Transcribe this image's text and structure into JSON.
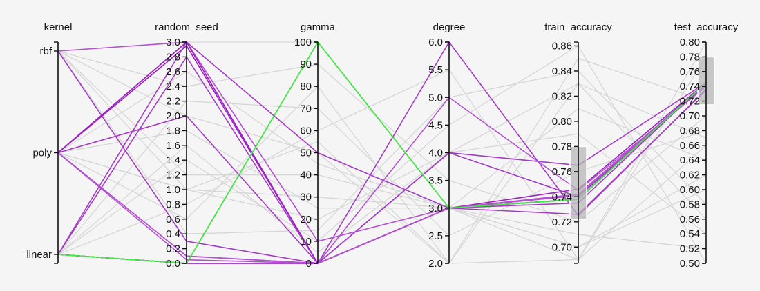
{
  "chart_data": {
    "type": "parallel_coordinates",
    "dimensions": [
      {
        "name": "kernel",
        "type": "categorical",
        "categories": [
          "linear",
          "poly",
          "rbf"
        ]
      },
      {
        "name": "random_seed",
        "type": "numeric",
        "range": [
          0.0,
          3.0
        ],
        "ticks": [
          "0.0",
          "0.2",
          "0.4",
          "0.6",
          "0.8",
          "1.0",
          "1.2",
          "1.4",
          "1.6",
          "1.8",
          "2.0",
          "2.2",
          "2.4",
          "2.6",
          "2.8",
          "3.0"
        ]
      },
      {
        "name": "gamma",
        "type": "numeric",
        "range": [
          0,
          100
        ],
        "ticks": [
          "0",
          "10",
          "20",
          "30",
          "40",
          "50",
          "60",
          "70",
          "80",
          "90",
          "100"
        ]
      },
      {
        "name": "degree",
        "type": "numeric",
        "range": [
          2.0,
          6.0
        ],
        "ticks": [
          "2.0",
          "2.5",
          "3.0",
          "3.5",
          "4.0",
          "4.5",
          "5.0",
          "5.5",
          "6.0"
        ]
      },
      {
        "name": "train_accuracy",
        "type": "numeric",
        "range": [
          0.687,
          0.863
        ],
        "ticks": [
          "0.70",
          "0.72",
          "0.74",
          "0.76",
          "0.78",
          "0.80",
          "0.82",
          "0.84",
          "0.86"
        ],
        "brush": [
          0.722,
          0.78
        ]
      },
      {
        "name": "test_accuracy",
        "type": "numeric",
        "range": [
          0.5,
          0.8
        ],
        "ticks": [
          "0.50",
          "0.52",
          "0.54",
          "0.56",
          "0.58",
          "0.60",
          "0.62",
          "0.64",
          "0.66",
          "0.68",
          "0.70",
          "0.72",
          "0.74",
          "0.76",
          "0.78",
          "0.80"
        ],
        "brush": [
          0.715,
          0.78
        ]
      }
    ],
    "highlight_colors": {
      "best": "#3ef03e",
      "selected": "#9b1fc0",
      "context": "#d6d6d6"
    },
    "highlighted_lines": [
      {
        "values": [
          "linear",
          0.0,
          100,
          3.0,
          0.738,
          0.745
        ],
        "color": "#3ef03e"
      },
      {
        "values": [
          "rbf",
          0.3,
          0,
          3.0,
          0.738,
          0.745
        ],
        "color": "#a33ac4"
      },
      {
        "values": [
          "poly",
          2.95,
          0,
          3.0,
          0.746,
          0.745
        ],
        "color": "#9b1fc0"
      },
      {
        "values": [
          "poly",
          2.0,
          0,
          3.0,
          0.726,
          0.735
        ],
        "color": "#a33ac4"
      },
      {
        "values": [
          "poly",
          0.1,
          0,
          4.0,
          0.765,
          0.745
        ],
        "color": "#a33ac4"
      },
      {
        "values": [
          "linear",
          3.0,
          50,
          3.0,
          0.741,
          0.745
        ],
        "color": "#a33ac4"
      },
      {
        "values": [
          "linear",
          0.0,
          0,
          4.0,
          0.74,
          0.742
        ],
        "color": "#a33ac4"
      },
      {
        "values": [
          "linear",
          2.8,
          0,
          6.0,
          0.725,
          0.736
        ],
        "color": "#a33ac4"
      },
      {
        "values": [
          "rbf",
          3.0,
          0,
          3.0,
          0.742,
          0.744
        ],
        "color": "#b250d0"
      },
      {
        "values": [
          "poly",
          0.05,
          0,
          5.0,
          0.745,
          0.74
        ],
        "color": "#b250d0"
      },
      {
        "values": [
          "linear",
          0.0,
          0,
          3.0,
          0.741,
          0.745
        ],
        "color": "#b250d0"
      },
      {
        "values": [
          "poly",
          3.0,
          10,
          3.0,
          0.738,
          0.745
        ],
        "color": "#b250d0"
      },
      {
        "values": [
          "poly",
          3.0,
          0,
          3.0,
          0.738,
          0.745
        ],
        "color": "#9b1fc0"
      },
      {
        "values": [
          "linear",
          0.0,
          0,
          3.0,
          0.735,
          0.745
        ],
        "color": "#a33ac4"
      },
      {
        "values": [
          "poly",
          0.1,
          0,
          3.0,
          0.738,
          0.744
        ],
        "color": "#b250d0"
      }
    ],
    "context_lines": [
      [
        "rbf",
        2.0,
        50,
        2.0,
        0.85,
        0.72
      ],
      [
        "rbf",
        1.0,
        30,
        3.0,
        0.7,
        0.6
      ],
      [
        "poly",
        1.0,
        20,
        4.0,
        0.83,
        0.56
      ],
      [
        "linear",
        0.8,
        60,
        5.5,
        0.69,
        0.78
      ],
      [
        "rbf",
        1.2,
        40,
        3.0,
        0.71,
        0.52
      ],
      [
        "poly",
        0.6,
        80,
        2.0,
        0.69,
        0.66
      ],
      [
        "linear",
        1.4,
        10,
        4.5,
        0.86,
        0.5
      ],
      [
        "rbf",
        2.4,
        90,
        3.5,
        0.72,
        0.7
      ],
      [
        "poly",
        1.8,
        25,
        3.0,
        0.81,
        0.64
      ],
      [
        "linear",
        2.2,
        70,
        2.5,
        0.76,
        0.68
      ],
      [
        "rbf",
        0.4,
        15,
        5.0,
        0.84,
        0.58
      ],
      [
        "poly",
        2.6,
        45,
        3.0,
        0.7,
        0.62
      ],
      [
        "linear",
        1.6,
        5,
        4.0,
        0.79,
        0.54
      ],
      [
        "rbf",
        3.0,
        100,
        3.0,
        0.69,
        0.8
      ],
      [
        "poly",
        1.0,
        55,
        2.0,
        0.83,
        0.67
      ]
    ]
  }
}
